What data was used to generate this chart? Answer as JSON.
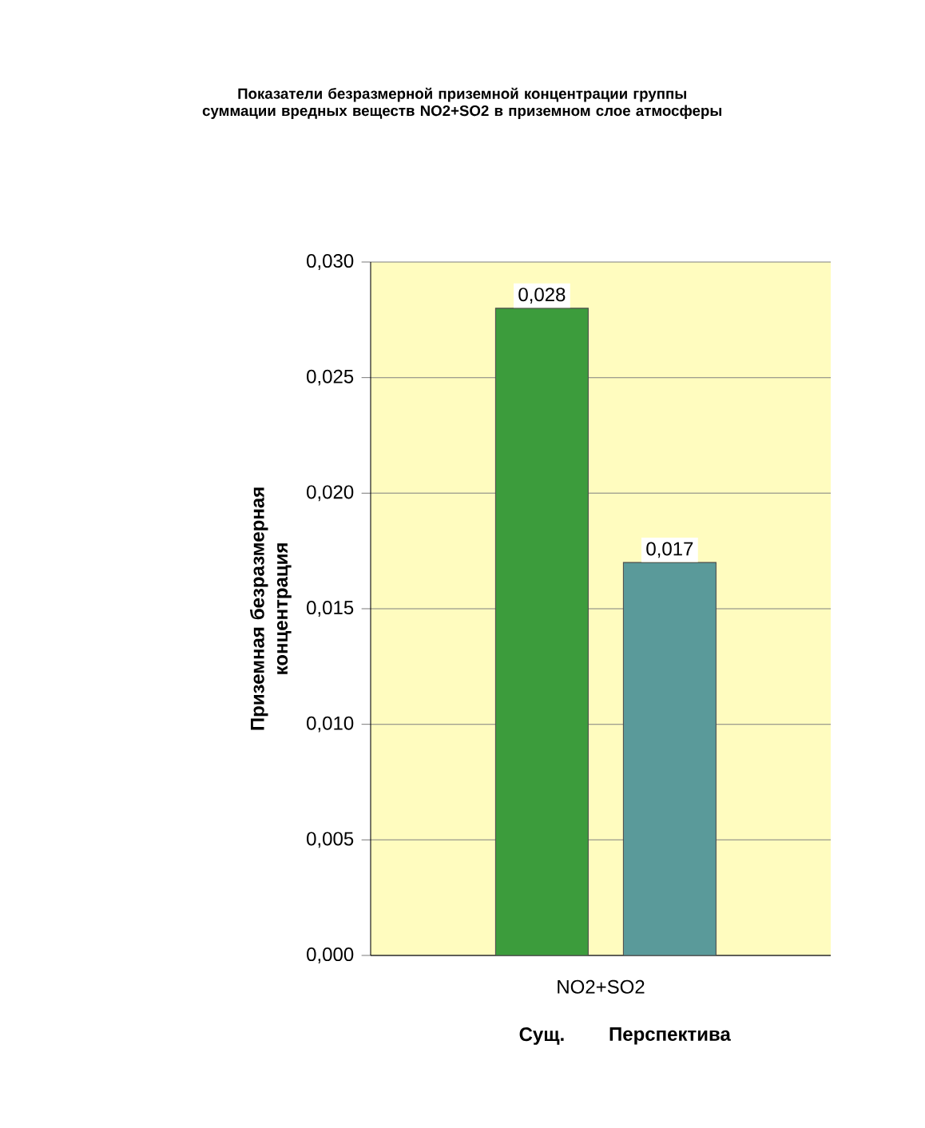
{
  "chart_data": {
    "type": "bar",
    "title": "Показатели безразмерной приземной концентрации группы суммации вредных веществ NO2+SO2 в приземном слое атмосферы",
    "categories": [
      "Сущ.",
      "Перспектива"
    ],
    "values": [
      0.028,
      0.017
    ],
    "colors": [
      "#3c9c3c",
      "#5a9a9a"
    ],
    "value_labels": [
      "0,028",
      "0,017"
    ],
    "xlabel": "NO2+SO2",
    "ylabel": "Приземная безразмерная концентрация",
    "ylim": [
      0,
      0.03
    ],
    "yticks": [
      {
        "value": 0,
        "label": "0,000"
      },
      {
        "value": 0.005,
        "label": "0,005"
      },
      {
        "value": 0.01,
        "label": "0,010"
      },
      {
        "value": 0.015,
        "label": "0,015"
      },
      {
        "value": 0.02,
        "label": "0,020"
      },
      {
        "value": 0.025,
        "label": "0,025"
      },
      {
        "value": 0.03,
        "label": "0,030"
      }
    ],
    "grid": "y"
  }
}
